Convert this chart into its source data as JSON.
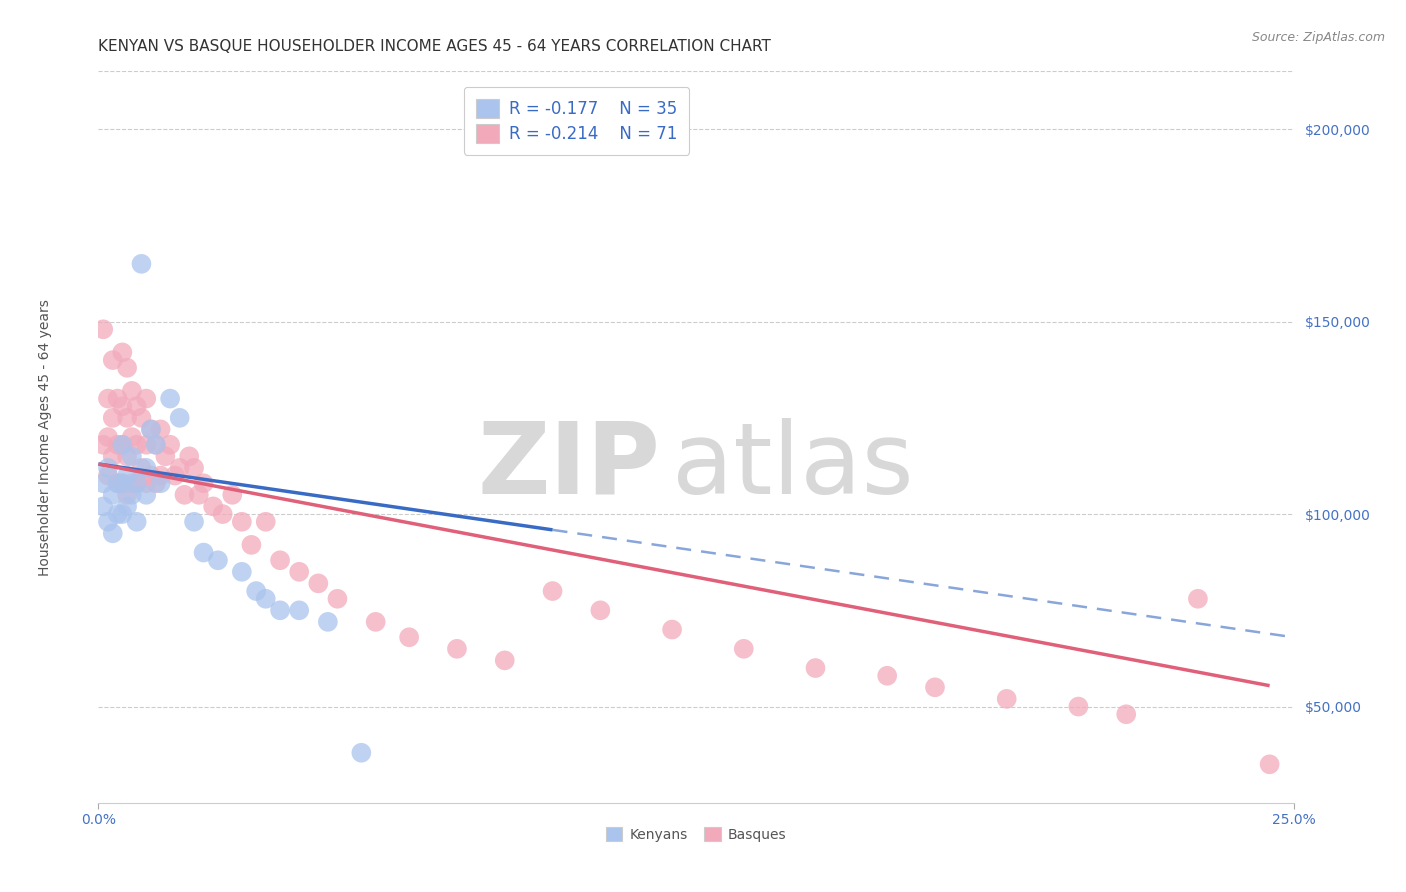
{
  "title": "KENYAN VS BASQUE HOUSEHOLDER INCOME AGES 45 - 64 YEARS CORRELATION CHART",
  "source": "Source: ZipAtlas.com",
  "ylabel": "Householder Income Ages 45 - 64 years",
  "xlim": [
    0.0,
    0.25
  ],
  "ylim": [
    25000,
    215000
  ],
  "yticks": [
    50000,
    100000,
    150000,
    200000
  ],
  "ytick_labels": [
    "$50,000",
    "$100,000",
    "$150,000",
    "$200,000"
  ],
  "watermark_zip": "ZIP",
  "watermark_atlas": "atlas",
  "legend_r_kenyan": "R = -0.177",
  "legend_n_kenyan": "N = 35",
  "legend_r_basque": "R = -0.214",
  "legend_n_basque": "N = 71",
  "kenyan_color": "#aac4ed",
  "basque_color": "#f2aabb",
  "kenyan_line_color": "#3a6bc4",
  "basque_line_color": "#e0607a",
  "background_color": "#ffffff",
  "kenyan_x": [
    0.001,
    0.001,
    0.002,
    0.002,
    0.003,
    0.003,
    0.004,
    0.004,
    0.005,
    0.005,
    0.005,
    0.006,
    0.006,
    0.007,
    0.007,
    0.008,
    0.008,
    0.009,
    0.01,
    0.01,
    0.011,
    0.012,
    0.013,
    0.015,
    0.017,
    0.02,
    0.022,
    0.025,
    0.03,
    0.033,
    0.035,
    0.038,
    0.042,
    0.048,
    0.055
  ],
  "kenyan_y": [
    108000,
    102000,
    112000,
    98000,
    105000,
    95000,
    108000,
    100000,
    118000,
    108000,
    100000,
    110000,
    102000,
    115000,
    105000,
    108000,
    98000,
    165000,
    112000,
    105000,
    122000,
    118000,
    108000,
    130000,
    125000,
    98000,
    90000,
    88000,
    85000,
    80000,
    78000,
    75000,
    75000,
    72000,
    38000
  ],
  "basque_x": [
    0.001,
    0.001,
    0.002,
    0.002,
    0.002,
    0.003,
    0.003,
    0.003,
    0.004,
    0.004,
    0.004,
    0.005,
    0.005,
    0.005,
    0.005,
    0.006,
    0.006,
    0.006,
    0.006,
    0.007,
    0.007,
    0.007,
    0.008,
    0.008,
    0.008,
    0.009,
    0.009,
    0.01,
    0.01,
    0.01,
    0.011,
    0.011,
    0.012,
    0.012,
    0.013,
    0.013,
    0.014,
    0.015,
    0.016,
    0.017,
    0.018,
    0.019,
    0.02,
    0.021,
    0.022,
    0.024,
    0.026,
    0.028,
    0.03,
    0.032,
    0.035,
    0.038,
    0.042,
    0.046,
    0.05,
    0.058,
    0.065,
    0.075,
    0.085,
    0.095,
    0.105,
    0.12,
    0.135,
    0.15,
    0.165,
    0.175,
    0.19,
    0.205,
    0.215,
    0.23,
    0.245
  ],
  "basque_y": [
    148000,
    118000,
    130000,
    120000,
    110000,
    140000,
    125000,
    115000,
    130000,
    118000,
    108000,
    142000,
    128000,
    118000,
    108000,
    138000,
    125000,
    115000,
    105000,
    132000,
    120000,
    108000,
    128000,
    118000,
    108000,
    125000,
    112000,
    130000,
    118000,
    108000,
    122000,
    110000,
    118000,
    108000,
    122000,
    110000,
    115000,
    118000,
    110000,
    112000,
    105000,
    115000,
    112000,
    105000,
    108000,
    102000,
    100000,
    105000,
    98000,
    92000,
    98000,
    88000,
    85000,
    82000,
    78000,
    72000,
    68000,
    65000,
    62000,
    80000,
    75000,
    70000,
    65000,
    60000,
    58000,
    55000,
    52000,
    50000,
    48000,
    78000,
    35000
  ],
  "title_fontsize": 11,
  "axis_label_fontsize": 10,
  "tick_fontsize": 10,
  "legend_fontsize": 12,
  "source_fontsize": 9
}
